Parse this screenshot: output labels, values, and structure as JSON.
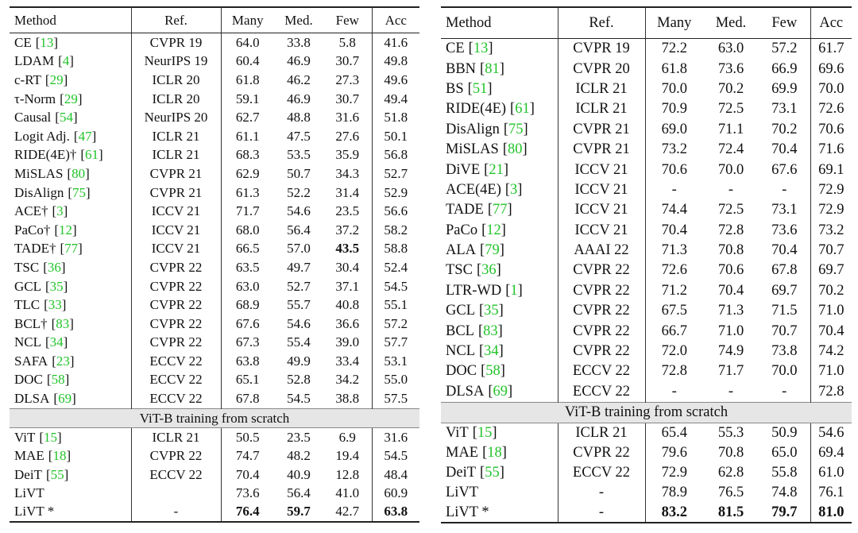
{
  "tables": [
    {
      "header": [
        "Method",
        "Ref.",
        "Many",
        "Med.",
        "Few",
        "Acc"
      ],
      "groups": [
        {
          "rows": [
            {
              "method": "CE",
              "cite": "[13]",
              "ref": "CVPR 19",
              "values": [
                "64.0",
                "33.8",
                "5.8",
                "41.6"
              ]
            },
            {
              "method": "LDAM",
              "cite": "[4]",
              "ref": "NeurIPS 19",
              "values": [
                "60.4",
                "46.9",
                "30.7",
                "49.8"
              ]
            },
            {
              "method": "c-RT",
              "cite": "[29]",
              "ref": "ICLR 20",
              "values": [
                "61.8",
                "46.2",
                "27.3",
                "49.6"
              ]
            },
            {
              "method": "τ-Norm",
              "cite": "[29]",
              "ref": "ICLR 20",
              "values": [
                "59.1",
                "46.9",
                "30.7",
                "49.4"
              ]
            },
            {
              "method": "Causal",
              "cite": "[54]",
              "ref": "NeurIPS 20",
              "values": [
                "62.7",
                "48.8",
                "31.6",
                "51.8"
              ]
            },
            {
              "method": "Logit Adj.",
              "cite": "[47]",
              "ref": "ICLR 21",
              "values": [
                "61.1",
                "47.5",
                "27.6",
                "50.1"
              ]
            },
            {
              "method": "RIDE(4E)†",
              "cite": "[61]",
              "ref": "ICLR 21",
              "values": [
                "68.3",
                "53.5",
                "35.9",
                "56.8"
              ]
            },
            {
              "method": "MiSLAS",
              "cite": "[80]",
              "ref": "CVPR 21",
              "values": [
                "62.9",
                "50.7",
                "34.3",
                "52.7"
              ]
            },
            {
              "method": "DisAlign",
              "cite": "[75]",
              "ref": "CVPR 21",
              "values": [
                "61.3",
                "52.2",
                "31.4",
                "52.9"
              ]
            },
            {
              "method": "ACE†",
              "cite": "[3]",
              "ref": "ICCV 21",
              "values": [
                "71.7",
                "54.6",
                "23.5",
                "56.6"
              ]
            },
            {
              "method": "PaCo†",
              "cite": "[12]",
              "ref": "ICCV 21",
              "values": [
                "68.0",
                "56.4",
                "37.2",
                "58.2"
              ]
            },
            {
              "method": "TADE†",
              "cite": "[77]",
              "ref": "ICCV 21",
              "values": [
                "66.5",
                "57.0",
                "43.5",
                "58.8"
              ],
              "bold": [
                2
              ]
            },
            {
              "method": "TSC",
              "cite": "[36]",
              "ref": "CVPR 22",
              "values": [
                "63.5",
                "49.7",
                "30.4",
                "52.4"
              ]
            },
            {
              "method": "GCL",
              "cite": "[35]",
              "ref": "CVPR 22",
              "values": [
                "63.0",
                "52.7",
                "37.1",
                "54.5"
              ]
            },
            {
              "method": "TLC",
              "cite": "[33]",
              "ref": "CVPR 22",
              "values": [
                "68.9",
                "55.7",
                "40.8",
                "55.1"
              ]
            },
            {
              "method": "BCL†",
              "cite": "[83]",
              "ref": "CVPR 22",
              "values": [
                "67.6",
                "54.6",
                "36.6",
                "57.2"
              ]
            },
            {
              "method": "NCL",
              "cite": "[34]",
              "ref": "CVPR 22",
              "values": [
                "67.3",
                "55.4",
                "39.0",
                "57.7"
              ]
            },
            {
              "method": "SAFA",
              "cite": "[23]",
              "ref": "ECCV 22",
              "values": [
                "63.8",
                "49.9",
                "33.4",
                "53.1"
              ]
            },
            {
              "method": "DOC",
              "cite": "[58]",
              "ref": "ECCV 22",
              "values": [
                "65.1",
                "52.8",
                "34.2",
                "55.0"
              ]
            },
            {
              "method": "DLSA",
              "cite": "[69]",
              "ref": "ECCV 22",
              "values": [
                "67.8",
                "54.5",
                "38.8",
                "57.5"
              ]
            }
          ]
        },
        {
          "title": "ViT-B training from scratch",
          "rows": [
            {
              "method": "ViT",
              "cite": "[15]",
              "ref": "ICLR 21",
              "values": [
                "50.5",
                "23.5",
                "6.9",
                "31.6"
              ]
            },
            {
              "method": "MAE",
              "cite": "[18]",
              "ref": "CVPR 22",
              "values": [
                "74.7",
                "48.2",
                "19.4",
                "54.5"
              ]
            },
            {
              "method": "DeiT",
              "cite": "[55]",
              "ref": "ECCV 22",
              "values": [
                "70.4",
                "40.9",
                "12.8",
                "48.4"
              ]
            },
            {
              "method": "LiVT",
              "ref": null,
              "values": [
                "73.6",
                "56.4",
                "41.0",
                "60.9"
              ]
            },
            {
              "method": "LiVT *",
              "ref": "-",
              "values": [
                "76.4",
                "59.7",
                "42.7",
                "63.8"
              ],
              "bold": [
                0,
                1,
                3
              ]
            }
          ]
        }
      ]
    },
    {
      "header": [
        "Method",
        "Ref.",
        "Many",
        "Med.",
        "Few",
        "Acc"
      ],
      "groups": [
        {
          "rows": [
            {
              "method": "CE",
              "cite": "[13]",
              "ref": "CVPR 19",
              "values": [
                "72.2",
                "63.0",
                "57.2",
                "61.7"
              ]
            },
            {
              "method": "BBN",
              "cite": "[81]",
              "ref": "CVPR 20",
              "values": [
                "61.8",
                "73.6",
                "66.9",
                "69.6"
              ]
            },
            {
              "method": "BS",
              "cite": "[51]",
              "ref": "ICLR 21",
              "values": [
                "70.0",
                "70.2",
                "69.9",
                "70.0"
              ]
            },
            {
              "method": "RIDE(4E)",
              "cite": "[61]",
              "ref": "ICLR 21",
              "values": [
                "70.9",
                "72.5",
                "73.1",
                "72.6"
              ]
            },
            {
              "method": "DisAlign",
              "cite": "[75]",
              "ref": "CVPR 21",
              "values": [
                "69.0",
                "71.1",
                "70.2",
                "70.6"
              ]
            },
            {
              "method": "MiSLAS",
              "cite": "[80]",
              "ref": "CVPR 21",
              "values": [
                "73.2",
                "72.4",
                "70.4",
                "71.6"
              ]
            },
            {
              "method": "DiVE",
              "cite": "[21]",
              "ref": "ICCV 21",
              "values": [
                "70.6",
                "70.0",
                "67.6",
                "69.1"
              ]
            },
            {
              "method": "ACE(4E)",
              "cite": "[3]",
              "ref": "ICCV 21",
              "values": [
                "-",
                "-",
                "-",
                "72.9"
              ]
            },
            {
              "method": "TADE",
              "cite": "[77]",
              "ref": "ICCV 21",
              "values": [
                "74.4",
                "72.5",
                "73.1",
                "72.9"
              ]
            },
            {
              "method": "PaCo",
              "cite": "[12]",
              "ref": "ICCV 21",
              "values": [
                "70.4",
                "72.8",
                "73.6",
                "73.2"
              ]
            },
            {
              "method": "ALA",
              "cite": "[79]",
              "ref": "AAAI 22",
              "values": [
                "71.3",
                "70.8",
                "70.4",
                "70.7"
              ]
            },
            {
              "method": "TSC",
              "cite": "[36]",
              "ref": "CVPR 22",
              "values": [
                "72.6",
                "70.6",
                "67.8",
                "69.7"
              ]
            },
            {
              "method": "LTR-WD",
              "cite": "[1]",
              "ref": "CVPR 22",
              "values": [
                "71.2",
                "70.4",
                "69.7",
                "70.2"
              ]
            },
            {
              "method": "GCL",
              "cite": "[35]",
              "ref": "CVPR 22",
              "values": [
                "67.5",
                "71.3",
                "71.5",
                "71.0"
              ]
            },
            {
              "method": "BCL",
              "cite": "[83]",
              "ref": "CVPR 22",
              "values": [
                "66.7",
                "71.0",
                "70.7",
                "70.4"
              ]
            },
            {
              "method": "NCL",
              "cite": "[34]",
              "ref": "CVPR 22",
              "values": [
                "72.0",
                "74.9",
                "73.8",
                "74.2"
              ]
            },
            {
              "method": "DOC",
              "cite": "[58]",
              "ref": "ECCV 22",
              "values": [
                "72.8",
                "71.7",
                "70.0",
                "71.0"
              ]
            },
            {
              "method": "DLSA",
              "cite": "[69]",
              "ref": "ECCV 22",
              "values": [
                "-",
                "-",
                "-",
                "72.8"
              ]
            }
          ]
        },
        {
          "title": "ViT-B training from scratch",
          "rows": [
            {
              "method": "ViT",
              "cite": "[15]",
              "ref": "ICLR 21",
              "values": [
                "65.4",
                "55.3",
                "50.9",
                "54.6"
              ]
            },
            {
              "method": "MAE",
              "cite": "[18]",
              "ref": "CVPR 22",
              "values": [
                "79.6",
                "70.8",
                "65.0",
                "69.4"
              ]
            },
            {
              "method": "DeiT",
              "cite": "[55]",
              "ref": "ECCV 22",
              "values": [
                "72.9",
                "62.8",
                "55.8",
                "61.0"
              ]
            },
            {
              "method": "LiVT",
              "ref": "-",
              "values": [
                "78.9",
                "76.5",
                "74.8",
                "76.1"
              ]
            },
            {
              "method": "LiVT *",
              "ref": "-",
              "values": [
                "83.2",
                "81.5",
                "79.7",
                "81.0"
              ],
              "bold": [
                0,
                1,
                2,
                3
              ]
            }
          ]
        }
      ]
    }
  ]
}
